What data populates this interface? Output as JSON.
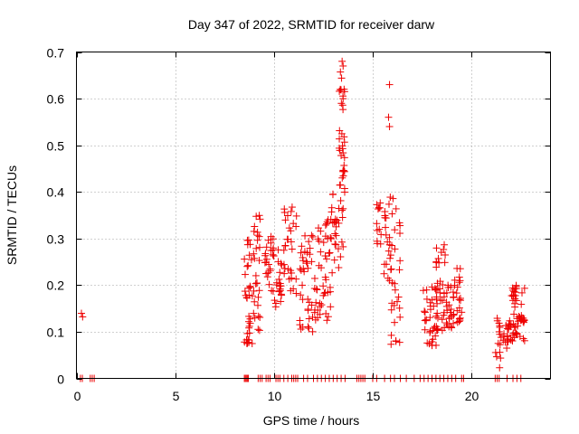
{
  "chart_data": {
    "type": "scatter",
    "title": "Day 347 of 2022, SRMTID for receiver darw",
    "xlabel": "GPS time / hours",
    "ylabel": "SRMTID / TECUs",
    "xlim": [
      0,
      24
    ],
    "ylim": [
      0,
      0.7
    ],
    "xticks": [
      0,
      5,
      10,
      15,
      20
    ],
    "xtick_labels": [
      "0",
      "5",
      "10",
      "15",
      "20"
    ],
    "yticks": [
      0,
      0.1,
      0.2,
      0.3,
      0.4,
      0.5,
      0.6,
      0.7
    ],
    "ytick_labels": [
      "0",
      "0.1",
      "0.2",
      "0.3",
      "0.4",
      "0.5",
      "0.6",
      "0.7"
    ],
    "grid": true,
    "marker": "+",
    "color": "#ee0000",
    "series": [
      {
        "name": "SRMTID",
        "clusters": [
          {
            "x": [
              0.25,
              0.45
            ],
            "y": [
              0.12,
              0.16
            ],
            "n": 2
          },
          {
            "x": [
              8.5,
              8.9
            ],
            "y": [
              0.07,
              0.3
            ],
            "n": 35
          },
          {
            "x": [
              8.9,
              9.3
            ],
            "y": [
              0.1,
              0.35
            ],
            "n": 30
          },
          {
            "x": [
              9.5,
              10.0
            ],
            "y": [
              0.18,
              0.31
            ],
            "n": 25
          },
          {
            "x": [
              10.0,
              10.4
            ],
            "y": [
              0.15,
              0.28
            ],
            "n": 20
          },
          {
            "x": [
              10.5,
              11.2
            ],
            "y": [
              0.18,
              0.38
            ],
            "n": 30
          },
          {
            "x": [
              11.3,
              12.2
            ],
            "y": [
              0.1,
              0.33
            ],
            "n": 45
          },
          {
            "x": [
              12.2,
              12.9
            ],
            "y": [
              0.12,
              0.35
            ],
            "n": 40
          },
          {
            "x": [
              12.9,
              13.3
            ],
            "y": [
              0.22,
              0.4
            ],
            "n": 20
          },
          {
            "x": [
              13.3,
              13.6
            ],
            "y": [
              0.26,
              0.68
            ],
            "n": 40
          },
          {
            "x": [
              15.2,
              15.5
            ],
            "y": [
              0.28,
              0.38
            ],
            "n": 12
          },
          {
            "x": [
              15.5,
              15.9
            ],
            "y": [
              0.2,
              0.4
            ],
            "n": 18
          },
          {
            "x": [
              15.9,
              16.4
            ],
            "y": [
              0.05,
              0.4
            ],
            "n": 30
          },
          {
            "x": [
              17.5,
              18.3
            ],
            "y": [
              0.07,
              0.2
            ],
            "n": 35
          },
          {
            "x": [
              18.2,
              18.7
            ],
            "y": [
              0.1,
              0.29
            ],
            "n": 35
          },
          {
            "x": [
              18.7,
              19.1
            ],
            "y": [
              0.1,
              0.2
            ],
            "n": 25
          },
          {
            "x": [
              19.1,
              19.5
            ],
            "y": [
              0.12,
              0.25
            ],
            "n": 20
          },
          {
            "x": [
              21.2,
              21.5
            ],
            "y": [
              0.02,
              0.14
            ],
            "n": 15
          },
          {
            "x": [
              21.6,
              22.0
            ],
            "y": [
              0.06,
              0.13
            ],
            "n": 20
          },
          {
            "x": [
              22.0,
              22.7
            ],
            "y": [
              0.08,
              0.21
            ],
            "n": 50
          }
        ],
        "outliers": [
          {
            "x": 15.85,
            "y": 0.63
          },
          {
            "x": 15.8,
            "y": 0.56
          },
          {
            "x": 15.85,
            "y": 0.54
          },
          {
            "x": 13.45,
            "y": 0.68
          },
          {
            "x": 13.5,
            "y": 0.67
          },
          {
            "x": 13.55,
            "y": 0.62
          },
          {
            "x": 13.5,
            "y": 0.6
          }
        ],
        "zero_x": [
          0.2,
          0.3,
          0.7,
          0.8,
          0.9,
          8.5,
          8.55,
          8.6,
          8.65,
          8.7,
          9.2,
          9.3,
          9.4,
          9.6,
          9.7,
          9.8,
          10.1,
          10.2,
          10.3,
          10.5,
          10.7,
          10.9,
          11.0,
          11.1,
          11.2,
          11.5,
          11.7,
          12.0,
          12.2,
          12.4,
          12.6,
          12.8,
          13.0,
          13.2,
          13.4,
          13.6,
          14.2,
          14.3,
          14.4,
          14.5,
          14.6,
          15.0,
          15.2,
          15.6,
          15.9,
          16.1,
          16.4,
          16.7,
          17.1,
          17.4,
          17.6,
          17.8,
          18.0,
          18.2,
          18.4,
          18.6,
          18.8,
          19.0,
          19.2,
          19.5,
          19.6,
          21.2,
          21.3,
          21.4,
          21.8,
          22.1,
          22.3,
          22.5
        ]
      }
    ]
  }
}
